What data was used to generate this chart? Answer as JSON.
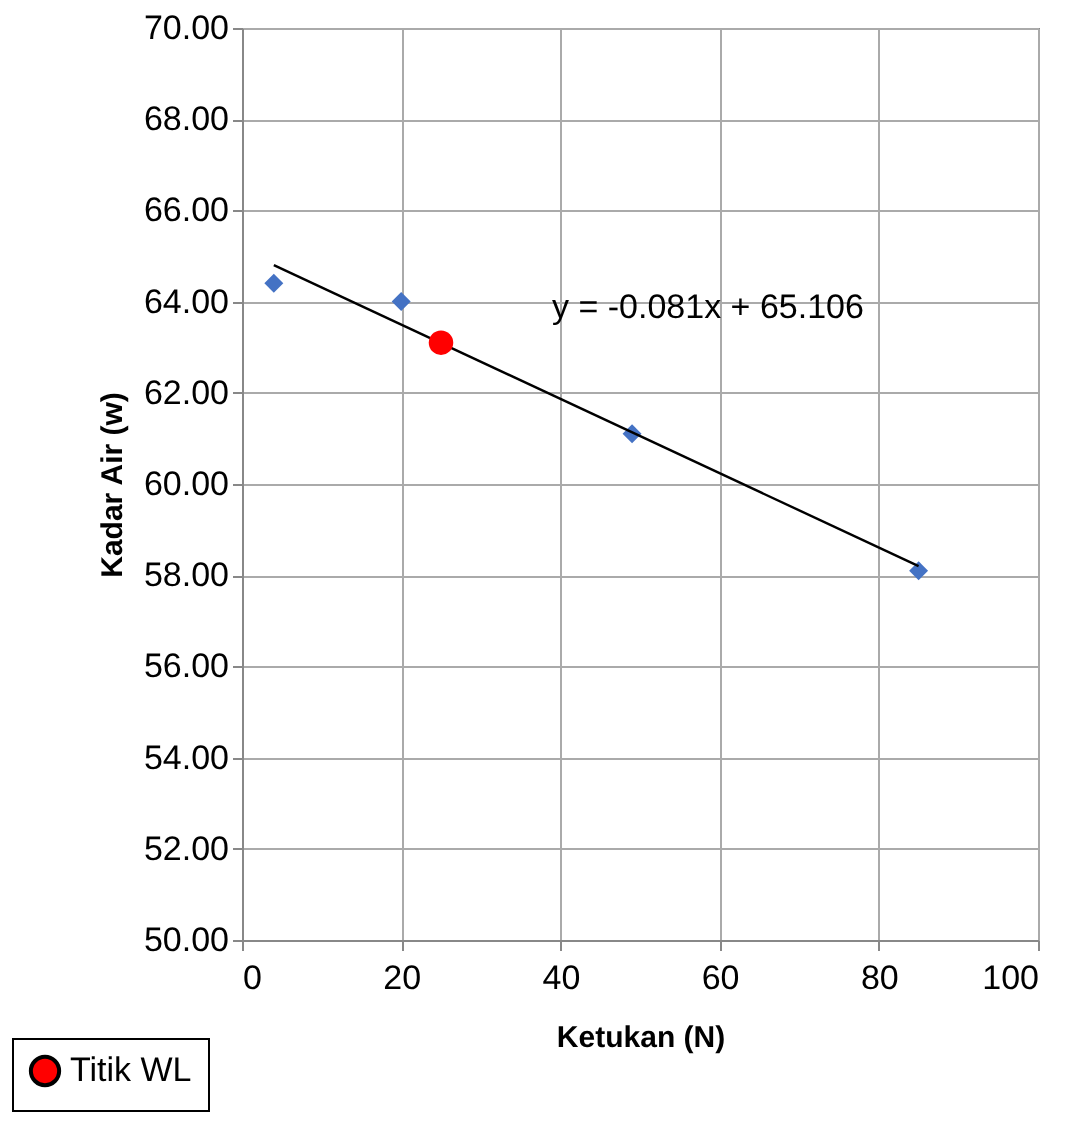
{
  "chart_data": {
    "type": "scatter",
    "xlabel": "Ketukan (N)",
    "ylabel": "Kadar Air (w)",
    "xlim": [
      0,
      100
    ],
    "xticks": [
      0,
      20,
      40,
      60,
      80,
      100
    ],
    "ylim": [
      50,
      70
    ],
    "yticks": [
      {
        "value": 50,
        "label": "50.00"
      },
      {
        "value": 52,
        "label": "52.00"
      },
      {
        "value": 54,
        "label": "54.00"
      },
      {
        "value": 56,
        "label": "56.00"
      },
      {
        "value": 58,
        "label": "58.00"
      },
      {
        "value": 60,
        "label": "60.00"
      },
      {
        "value": 62,
        "label": "62.00"
      },
      {
        "value": 64,
        "label": "64.00"
      },
      {
        "value": 66,
        "label": "66.00"
      },
      {
        "value": 68,
        "label": "68.00"
      },
      {
        "value": 70,
        "label": "70.00"
      }
    ],
    "grid": true,
    "legend": "bottom left",
    "series": [
      {
        "marker": "diamond",
        "color": "#4472c4",
        "x": [
          4,
          20,
          49,
          85
        ],
        "values": [
          64.4,
          64.0,
          61.1,
          58.1
        ]
      },
      {
        "type": "line",
        "marker": "none",
        "color": "#000000",
        "x": [
          4,
          85
        ],
        "values": [
          64.8,
          58.2
        ]
      },
      {
        "name": "Titik WL",
        "marker": "circle",
        "color": "#ff0000",
        "x": [
          25
        ],
        "values": [
          63.1
        ]
      }
    ],
    "annotations": [
      "y = -0.081x + 65.106"
    ]
  }
}
